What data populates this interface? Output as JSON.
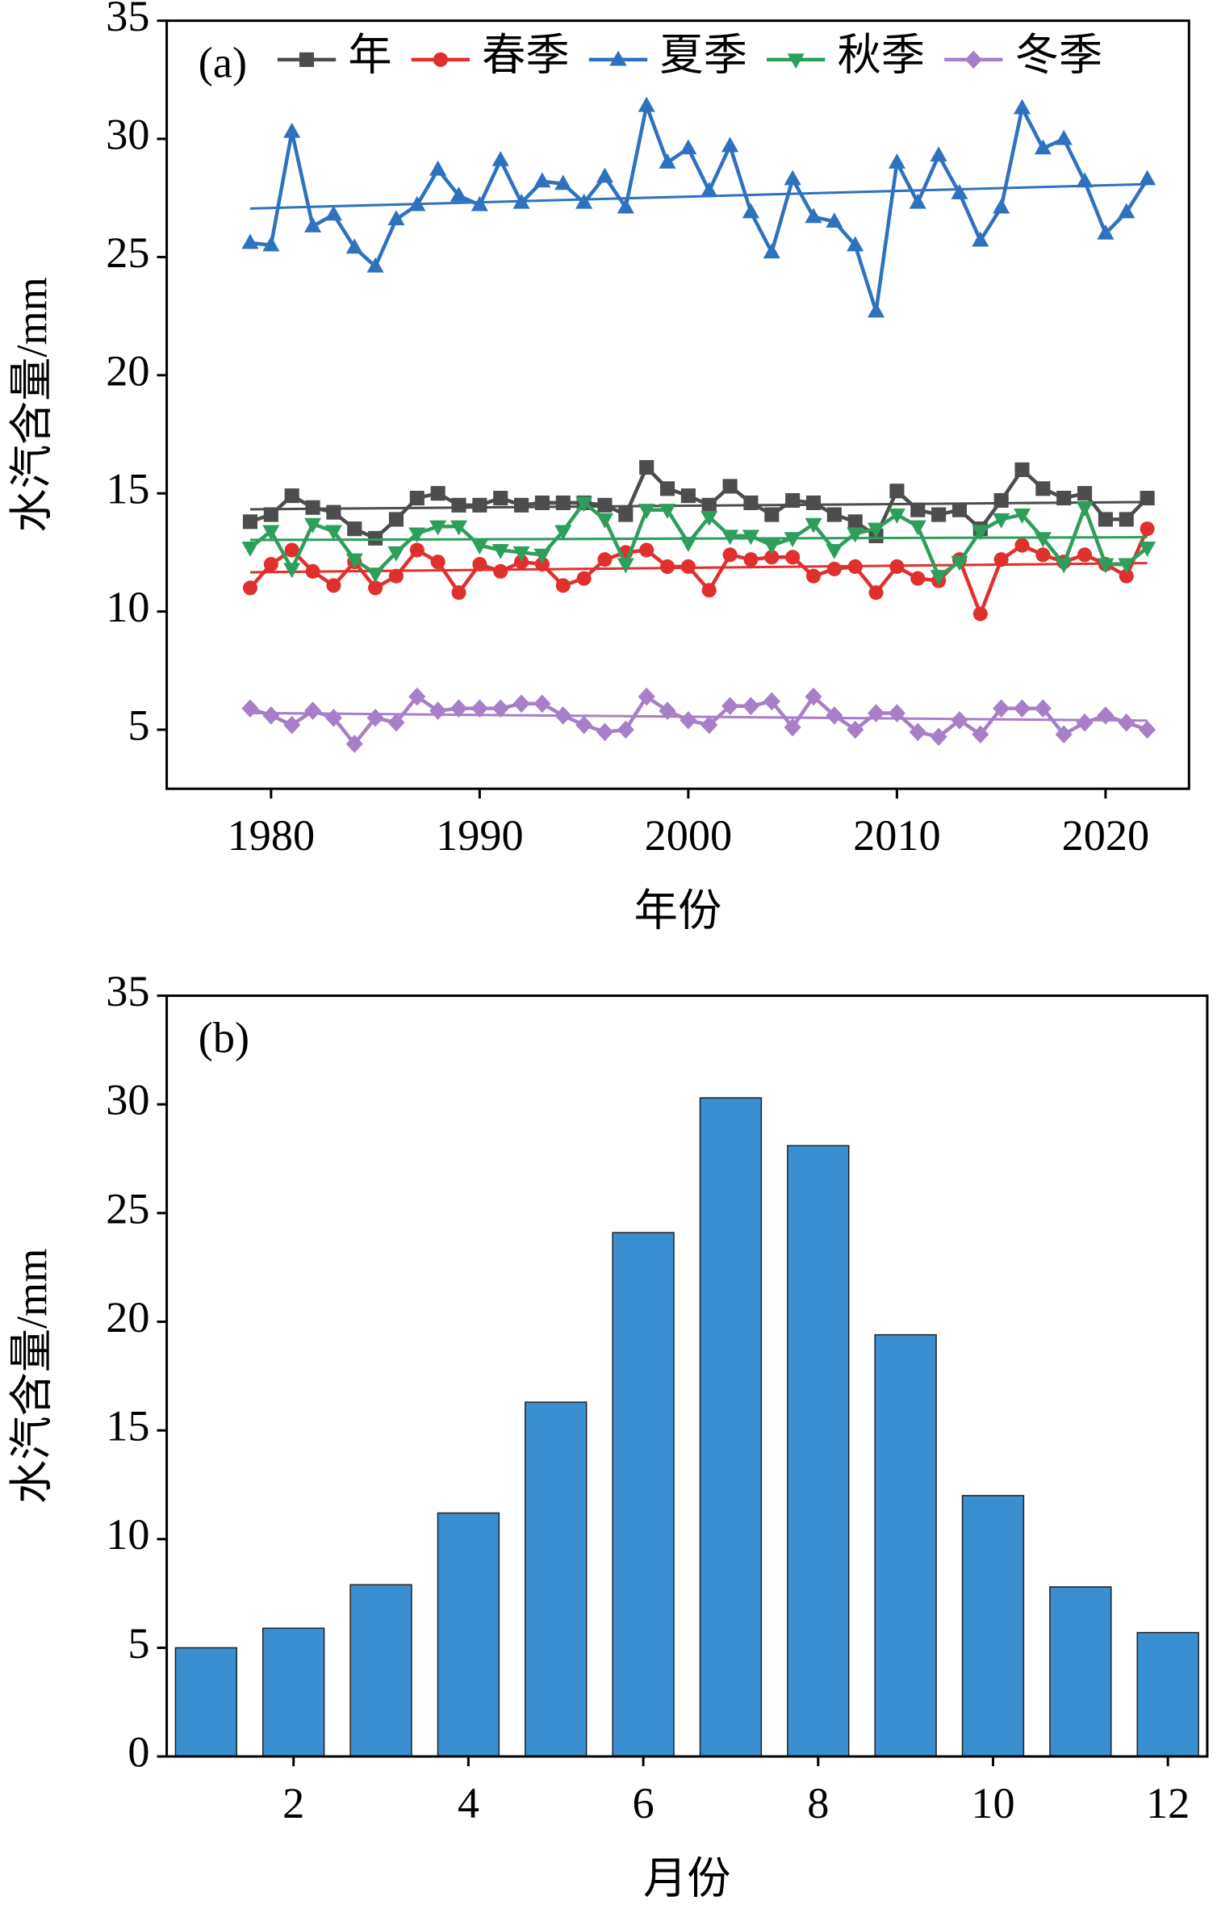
{
  "chart_data": [
    {
      "type": "line",
      "panel_label": "(a)",
      "xlabel": "年份",
      "ylabel": "水汽含量/mm",
      "x": [
        1979,
        1980,
        1981,
        1982,
        1983,
        1984,
        1985,
        1986,
        1987,
        1988,
        1989,
        1990,
        1991,
        1992,
        1993,
        1994,
        1995,
        1996,
        1997,
        1998,
        1999,
        2000,
        2001,
        2002,
        2003,
        2004,
        2005,
        2006,
        2007,
        2008,
        2009,
        2010,
        2011,
        2012,
        2013,
        2014,
        2015,
        2016,
        2017,
        2018,
        2019,
        2020,
        2021,
        2022
      ],
      "xlim": [
        1975,
        2024
      ],
      "xticks": [
        1980,
        1990,
        2000,
        2010,
        2020
      ],
      "ylim": [
        2.5,
        35
      ],
      "yticks": [
        5,
        10,
        15,
        20,
        25,
        30,
        35
      ],
      "trendline": true,
      "series": [
        {
          "name": "年",
          "color": "#4d4d4d",
          "marker": "square",
          "values": [
            13.8,
            14.1,
            14.9,
            14.4,
            14.2,
            13.5,
            13.1,
            13.9,
            14.8,
            15.0,
            14.5,
            14.5,
            14.8,
            14.5,
            14.6,
            14.6,
            14.6,
            14.5,
            14.1,
            16.1,
            15.2,
            14.9,
            14.5,
            15.3,
            14.6,
            14.1,
            14.7,
            14.6,
            14.1,
            13.8,
            13.2,
            15.1,
            14.3,
            14.1,
            14.3,
            13.5,
            14.7,
            16.0,
            15.2,
            14.8,
            15.0,
            13.9,
            13.9,
            14.8
          ]
        },
        {
          "name": "春季",
          "color": "#e0302e",
          "marker": "circle",
          "values": [
            11.0,
            12.0,
            12.6,
            11.7,
            11.1,
            12.1,
            11.0,
            11.5,
            12.6,
            12.1,
            10.8,
            12.0,
            11.7,
            12.1,
            12.0,
            11.1,
            11.4,
            12.2,
            12.5,
            12.6,
            11.9,
            11.9,
            10.9,
            12.4,
            12.2,
            12.3,
            12.3,
            11.5,
            11.8,
            11.9,
            10.8,
            11.9,
            11.4,
            11.3,
            12.2,
            9.9,
            12.2,
            12.8,
            12.4,
            12.1,
            12.4,
            12.0,
            11.5,
            13.5
          ]
        },
        {
          "name": "夏季",
          "color": "#2e72bf",
          "marker": "triangle-up",
          "values": [
            25.6,
            25.5,
            30.3,
            26.3,
            26.8,
            25.4,
            24.6,
            26.6,
            27.2,
            28.7,
            27.6,
            27.2,
            29.1,
            27.3,
            28.2,
            28.1,
            27.3,
            28.4,
            27.1,
            31.4,
            29.0,
            29.6,
            27.8,
            29.7,
            26.9,
            25.2,
            28.3,
            26.7,
            26.5,
            25.5,
            22.7,
            29.0,
            27.3,
            29.3,
            27.7,
            25.7,
            27.1,
            31.3,
            29.6,
            30.0,
            28.2,
            26.0,
            26.9,
            28.3
          ]
        },
        {
          "name": "秋季",
          "color": "#2e9e5b",
          "marker": "triangle-down",
          "values": [
            12.7,
            13.4,
            11.8,
            13.7,
            13.4,
            12.2,
            11.6,
            12.5,
            13.3,
            13.6,
            13.6,
            12.8,
            12.6,
            12.5,
            12.4,
            13.4,
            14.6,
            13.9,
            12.0,
            14.3,
            14.3,
            12.9,
            14.0,
            13.2,
            13.2,
            12.8,
            13.1,
            13.7,
            12.6,
            13.3,
            13.5,
            14.1,
            13.6,
            11.5,
            12.1,
            13.4,
            13.9,
            14.1,
            13.1,
            12.0,
            14.4,
            12.0,
            12.0,
            12.7
          ]
        },
        {
          "name": "冬季",
          "color": "#a67fc8",
          "marker": "diamond",
          "values": [
            5.9,
            5.6,
            5.2,
            5.8,
            5.5,
            4.4,
            5.5,
            5.3,
            6.4,
            5.8,
            5.9,
            5.9,
            5.9,
            6.1,
            6.1,
            5.6,
            5.2,
            4.9,
            5.0,
            6.4,
            5.8,
            5.4,
            5.2,
            6.0,
            6.0,
            6.2,
            5.1,
            6.4,
            5.6,
            5.0,
            5.7,
            5.7,
            4.9,
            4.7,
            5.4,
            4.8,
            5.9,
            5.9,
            5.9,
            4.8,
            5.3,
            5.6,
            5.3,
            5.0
          ]
        }
      ]
    },
    {
      "type": "bar",
      "panel_label": "(b)",
      "xlabel": "月份",
      "ylabel": "水汽含量/mm",
      "x": [
        1,
        2,
        3,
        4,
        5,
        6,
        7,
        8,
        9,
        10,
        11,
        12
      ],
      "values": [
        5.0,
        5.9,
        7.9,
        11.2,
        16.3,
        24.1,
        30.3,
        28.1,
        19.4,
        12.0,
        7.8,
        5.7
      ],
      "color": "#3a8fd0",
      "xlim": [
        0.55,
        12.45
      ],
      "xticks": [
        2,
        4,
        6,
        8,
        10,
        12
      ],
      "ylim": [
        0,
        35
      ],
      "yticks": [
        0,
        5,
        10,
        15,
        20,
        25,
        30,
        35
      ]
    }
  ]
}
